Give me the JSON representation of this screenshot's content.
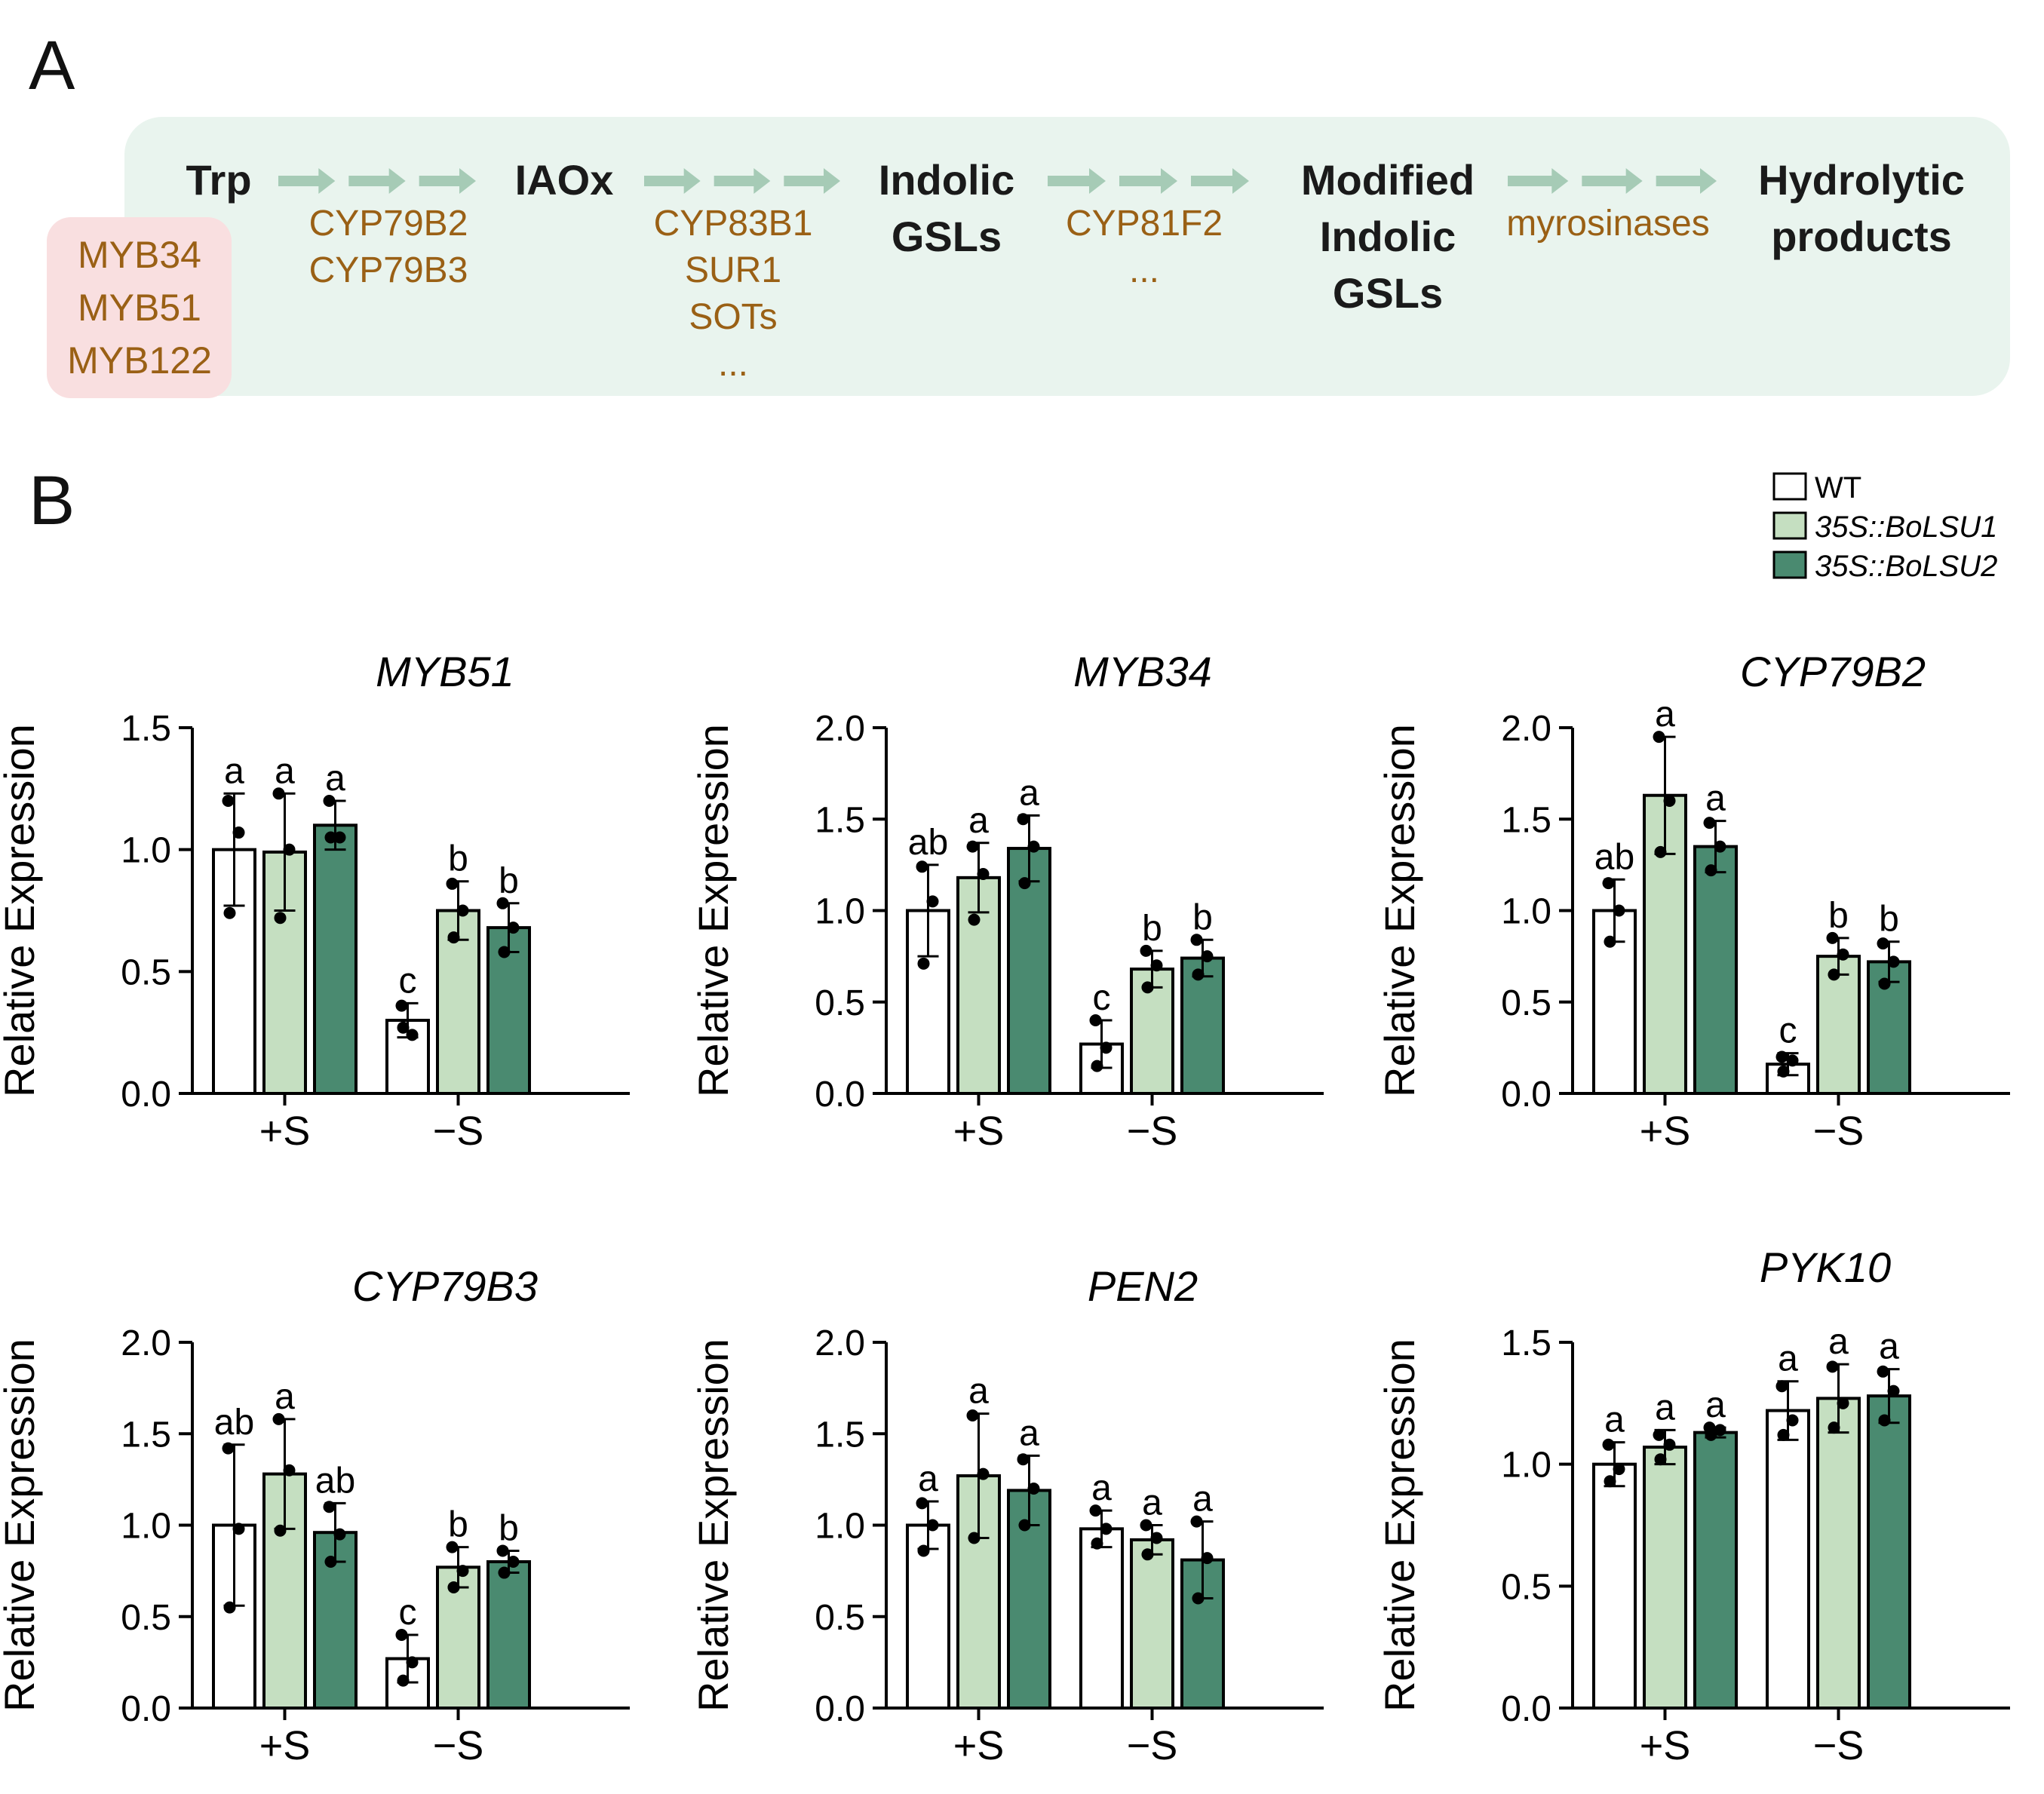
{
  "panel_a": {
    "label": "A",
    "regulators": [
      "MYB34",
      "MYB51",
      "MYB122"
    ],
    "nodes": [
      [
        "Trp"
      ],
      [
        "IAOx"
      ],
      [
        "Indolic",
        "GSLs"
      ],
      [
        "Modified",
        "Indolic",
        "GSLs"
      ],
      [
        "Hydrolytic",
        "products"
      ]
    ],
    "enzymes": [
      [
        "CYP79B2",
        "CYP79B3"
      ],
      [
        "CYP83B1",
        "SUR1",
        "SOTs",
        "..."
      ],
      [
        "CYP81F2",
        "..."
      ],
      [
        "myrosinases"
      ]
    ],
    "colors": {
      "background": "#e9f4ee",
      "regulator_box": "#f9dfe0",
      "arrow": "#a6cbb6",
      "enzyme_text": "#9a6015",
      "node_text": "#1a1a1a"
    }
  },
  "panel_b": {
    "label": "B",
    "legend": [
      {
        "label": "WT",
        "color": "#ffffff"
      },
      {
        "label": "35S::BoLSU1",
        "color": "#c5dfc1"
      },
      {
        "label": "35S::BoLSU2",
        "color": "#4a8a70"
      }
    ],
    "ylabel": "Relative Expression"
  },
  "chart_data": [
    {
      "type": "bar",
      "title": "MYB51",
      "ylabel": "Relative Expression",
      "categories": [
        "+S",
        "−S"
      ],
      "ylim": [
        0,
        1.5
      ],
      "yticks": [
        "0.0",
        "0.5",
        "1.0",
        "1.5"
      ],
      "series": [
        {
          "name": "WT",
          "values": [
            1.0,
            0.3
          ],
          "error": [
            0.23,
            0.07
          ],
          "letters": [
            "a",
            "c"
          ],
          "points": [
            [
              1.2,
              1.07,
              0.74
            ],
            [
              0.36,
              0.24,
              0.27
            ]
          ]
        },
        {
          "name": "35S::BoLSU1",
          "values": [
            0.99,
            0.75
          ],
          "error": [
            0.24,
            0.12
          ],
          "letters": [
            "a",
            "b"
          ],
          "points": [
            [
              1.23,
              1.0,
              0.72
            ],
            [
              0.86,
              0.75,
              0.64
            ]
          ]
        },
        {
          "name": "35S::BoLSU2",
          "values": [
            1.1,
            0.68
          ],
          "error": [
            0.1,
            0.1
          ],
          "letters": [
            "a",
            "b"
          ],
          "points": [
            [
              1.2,
              1.05,
              1.05
            ],
            [
              0.78,
              0.68,
              0.58
            ]
          ]
        }
      ]
    },
    {
      "type": "bar",
      "title": "MYB34",
      "ylabel": "Relative Expression",
      "categories": [
        "+S",
        "−S"
      ],
      "ylim": [
        0,
        2.0
      ],
      "yticks": [
        "0.0",
        "0.5",
        "1.0",
        "1.5",
        "2.0"
      ],
      "series": [
        {
          "name": "WT",
          "values": [
            1.0,
            0.27
          ],
          "error": [
            0.25,
            0.13
          ],
          "letters": [
            "ab",
            "c"
          ],
          "points": [
            [
              1.24,
              1.05,
              0.71
            ],
            [
              0.4,
              0.25,
              0.15
            ]
          ]
        },
        {
          "name": "35S::BoLSU1",
          "values": [
            1.18,
            0.68
          ],
          "error": [
            0.19,
            0.1
          ],
          "letters": [
            "a",
            "b"
          ],
          "points": [
            [
              1.35,
              1.2,
              0.95
            ],
            [
              0.78,
              0.7,
              0.58
            ]
          ]
        },
        {
          "name": "35S::BoLSU2",
          "values": [
            1.34,
            0.74
          ],
          "error": [
            0.18,
            0.1
          ],
          "letters": [
            "a",
            "b"
          ],
          "points": [
            [
              1.5,
              1.35,
              1.15
            ],
            [
              0.84,
              0.75,
              0.65
            ]
          ]
        }
      ]
    },
    {
      "type": "bar",
      "title": "CYP79B2",
      "ylabel": "Relative Expression",
      "categories": [
        "+S",
        "−S"
      ],
      "ylim": [
        0,
        2.0
      ],
      "yticks": [
        "0.0",
        "0.5",
        "1.0",
        "1.5",
        "2.0"
      ],
      "series": [
        {
          "name": "WT",
          "values": [
            1.0,
            0.16
          ],
          "error": [
            0.17,
            0.06
          ],
          "letters": [
            "ab",
            "c"
          ],
          "points": [
            [
              1.15,
              1.0,
              0.83
            ],
            [
              0.2,
              0.18,
              0.12
            ]
          ]
        },
        {
          "name": "35S::BoLSU1",
          "values": [
            1.63,
            0.75
          ],
          "error": [
            0.32,
            0.1
          ],
          "letters": [
            "a",
            "b"
          ],
          "points": [
            [
              1.95,
              1.6,
              1.32
            ],
            [
              0.85,
              0.76,
              0.65
            ]
          ]
        },
        {
          "name": "35S::BoLSU2",
          "values": [
            1.35,
            0.72
          ],
          "error": [
            0.14,
            0.11
          ],
          "letters": [
            "a",
            "b"
          ],
          "points": [
            [
              1.48,
              1.35,
              1.22
            ],
            [
              0.82,
              0.72,
              0.6
            ]
          ]
        }
      ]
    },
    {
      "type": "bar",
      "title": "CYP79B3",
      "ylabel": "Relative Expression",
      "categories": [
        "+S",
        "−S"
      ],
      "ylim": [
        0,
        2.0
      ],
      "yticks": [
        "0.0",
        "0.5",
        "1.0",
        "1.5",
        "2.0"
      ],
      "series": [
        {
          "name": "WT",
          "values": [
            1.0,
            0.27
          ],
          "error": [
            0.44,
            0.13
          ],
          "letters": [
            "ab",
            "c"
          ],
          "points": [
            [
              1.42,
              0.98,
              0.55
            ],
            [
              0.4,
              0.25,
              0.15
            ]
          ]
        },
        {
          "name": "35S::BoLSU1",
          "values": [
            1.28,
            0.77
          ],
          "error": [
            0.3,
            0.11
          ],
          "letters": [
            "a",
            "b"
          ],
          "points": [
            [
              1.58,
              1.3,
              0.97
            ],
            [
              0.88,
              0.75,
              0.66
            ]
          ]
        },
        {
          "name": "35S::BoLSU2",
          "values": [
            0.96,
            0.8
          ],
          "error": [
            0.16,
            0.06
          ],
          "letters": [
            "ab",
            "b"
          ],
          "points": [
            [
              1.1,
              0.95,
              0.8
            ],
            [
              0.86,
              0.8,
              0.74
            ]
          ]
        }
      ]
    },
    {
      "type": "bar",
      "title": "PEN2",
      "ylabel": "Relative Expression",
      "categories": [
        "+S",
        "−S"
      ],
      "ylim": [
        0,
        2.0
      ],
      "yticks": [
        "0.0",
        "0.5",
        "1.0",
        "1.5",
        "2.0"
      ],
      "series": [
        {
          "name": "WT",
          "values": [
            1.0,
            0.98
          ],
          "error": [
            0.13,
            0.1
          ],
          "letters": [
            "a",
            "a"
          ],
          "points": [
            [
              1.12,
              1.0,
              0.86
            ],
            [
              1.08,
              0.98,
              0.9
            ]
          ]
        },
        {
          "name": "35S::BoLSU1",
          "values": [
            1.27,
            0.92
          ],
          "error": [
            0.34,
            0.08
          ],
          "letters": [
            "a",
            "a"
          ],
          "points": [
            [
              1.6,
              1.28,
              0.93
            ],
            [
              1.0,
              0.93,
              0.84
            ]
          ]
        },
        {
          "name": "35S::BoLSU2",
          "values": [
            1.19,
            0.81
          ],
          "error": [
            0.19,
            0.21
          ],
          "letters": [
            "a",
            "a"
          ],
          "points": [
            [
              1.36,
              1.2,
              1.0
            ],
            [
              1.02,
              0.82,
              0.6
            ]
          ]
        }
      ]
    },
    {
      "type": "bar",
      "title": "PYK10",
      "ylabel": "Relative Expression",
      "categories": [
        "+S",
        "−S"
      ],
      "ylim": [
        0,
        1.5
      ],
      "yticks": [
        "0.0",
        "0.5",
        "1.0",
        "1.5"
      ],
      "series": [
        {
          "name": "WT",
          "values": [
            1.0,
            1.22
          ],
          "error": [
            0.09,
            0.12
          ],
          "letters": [
            "a",
            "a"
          ],
          "points": [
            [
              1.08,
              0.98,
              0.93
            ],
            [
              1.32,
              1.18,
              1.12
            ]
          ]
        },
        {
          "name": "35S::BoLSU1",
          "values": [
            1.07,
            1.27
          ],
          "error": [
            0.07,
            0.14
          ],
          "letters": [
            "a",
            "a"
          ],
          "points": [
            [
              1.12,
              1.08,
              1.02
            ],
            [
              1.4,
              1.25,
              1.15
            ]
          ]
        },
        {
          "name": "35S::BoLSU2",
          "values": [
            1.13,
            1.28
          ],
          "error": [
            0.02,
            0.11
          ],
          "letters": [
            "a",
            "a"
          ],
          "points": [
            [
              1.15,
              1.14,
              1.12
            ],
            [
              1.38,
              1.3,
              1.18
            ]
          ]
        }
      ]
    }
  ]
}
